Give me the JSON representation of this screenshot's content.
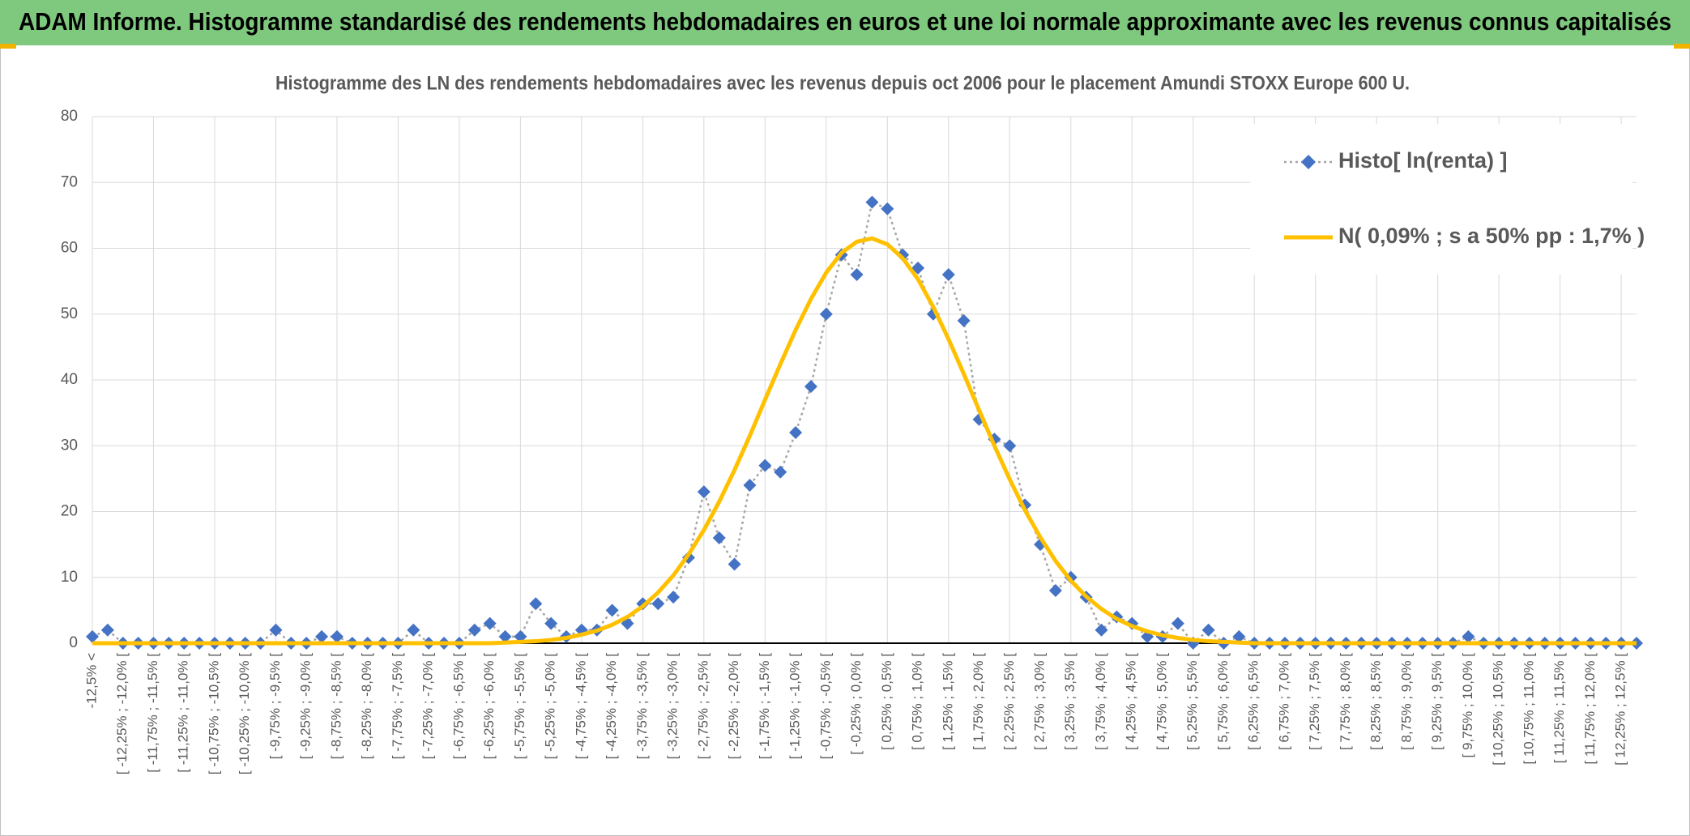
{
  "chart_data": {
    "type": "line",
    "title": "ADAM Informe. Histogramme standardisé des rendements hebdomadaires en euros et une loi normale approximante avec les revenus connus capitalisés",
    "subtitle": "Histogramme des LN des rendements hebdomadaires avec les revenus depuis oct 2006 pour le placement Amundi STOXX Europe 600 U.",
    "categories": [
      "-12,5% <",
      null,
      "[ -12,25% ; -12,0% [",
      null,
      "[ -11,75% ; -11,5% [",
      null,
      "[ -11,25% ; -11,0% [",
      null,
      "[ -10,75% ; -10,5% [",
      null,
      "[ -10,25% ; -10,0% [",
      null,
      "[ -9,75% ; -9,5% [",
      null,
      "[ -9,25% ; -9,0% [",
      null,
      "[ -8,75% ; -8,5% [",
      null,
      "[ -8,25% ; -8,0% [",
      null,
      "[ -7,75% ; -7,5% [",
      null,
      "[ -7,25% ; -7,0% [",
      null,
      "[ -6,75% ; -6,5% [",
      null,
      "[ -6,25% ; -6,0% [",
      null,
      "[ -5,75% ; -5,5% [",
      null,
      "[ -5,25% ; -5,0% [",
      null,
      "[ -4,75% ; -4,5% [",
      null,
      "[ -4,25% ; -4,0% [",
      null,
      "[ -3,75% ; -3,5% [",
      null,
      "[ -3,25% ; -3,0% [",
      null,
      "[ -2,75% ; -2,5% [",
      null,
      "[ -2,25% ; -2,0% [",
      null,
      "[ -1,75% ; -1,5% [",
      null,
      "[ -1,25% ; -1,0% [",
      null,
      "[ -0,75% ; -0,5% [",
      null,
      "[ -0,25% ; 0,0% [",
      null,
      "[ 0,25% ; 0,5% [",
      null,
      "[ 0,75% ; 1,0% [",
      null,
      "[ 1,25% ; 1,5% [",
      null,
      "[ 1,75% ; 2,0% [",
      null,
      "[ 2,25% ; 2,5% [",
      null,
      "[ 2,75% ; 3,0% [",
      null,
      "[ 3,25% ; 3,5% [",
      null,
      "[ 3,75% ; 4,0% [",
      null,
      "[ 4,25% ; 4,5% [",
      null,
      "[ 4,75% ; 5,0% [",
      null,
      "[ 5,25% ; 5,5% [",
      null,
      "[ 5,75% ; 6,0% [",
      null,
      "[ 6,25% ; 6,5% [",
      null,
      "[ 6,75% ; 7,0% [",
      null,
      "[ 7,25% ; 7,5% [",
      null,
      "[ 7,75% ; 8,0% [",
      null,
      "[ 8,25% ; 8,5% [",
      null,
      "[ 8,75% ; 9,0% [",
      null,
      "[ 9,25% ; 9,5% [",
      null,
      "[ 9,75% ; 10,0% [",
      null,
      "[ 10,25% ; 10,5% [",
      null,
      "[ 10,75% ; 11,0% [",
      null,
      "[ 11,25% ; 11,5% [",
      null,
      "[ 11,75% ; 12,0% [",
      null,
      "[ 12,25% ; 12,5% [",
      null
    ],
    "series": [
      {
        "name": "Histo[ ln(renta) ]",
        "color": "#4472c4",
        "line_color": "#a6a6a6",
        "marker": "diamond",
        "dashed": true,
        "values": [
          1,
          2,
          0,
          0,
          0,
          0,
          0,
          0,
          0,
          0,
          0,
          0,
          2,
          0,
          0,
          1,
          1,
          0,
          0,
          0,
          0,
          2,
          0,
          0,
          0,
          2,
          3,
          1,
          1,
          6,
          3,
          1,
          2,
          2,
          5,
          3,
          6,
          6,
          7,
          13,
          23,
          16,
          12,
          24,
          27,
          26,
          32,
          39,
          50,
          59,
          56,
          67,
          66,
          59,
          57,
          50,
          56,
          49,
          34,
          31,
          30,
          21,
          15,
          8,
          10,
          7,
          2,
          4,
          3,
          1,
          1,
          3,
          0,
          2,
          0,
          1,
          0,
          0,
          0,
          0,
          0,
          0,
          0,
          0,
          0,
          0,
          0,
          0,
          0,
          0,
          1,
          0,
          0,
          0,
          0,
          0,
          0,
          0,
          0,
          0,
          0,
          0
        ]
      },
      {
        "name": "N( 0,09% ; s a 50% pp : 1,7% )",
        "color": "#ffc000",
        "marker": "none",
        "dashed": false,
        "values": [
          0,
          0,
          0,
          0,
          0,
          0,
          0,
          0,
          0,
          0,
          0,
          0,
          0,
          0,
          0,
          0,
          0,
          0,
          0,
          0,
          0,
          0,
          0,
          0,
          0,
          0,
          0,
          0.1,
          0.2,
          0.3,
          0.5,
          0.8,
          1.3,
          1.9,
          2.8,
          4.0,
          5.6,
          7.7,
          10.3,
          13.5,
          17.2,
          21.5,
          26.3,
          31.5,
          37.0,
          42.4,
          47.6,
          52.3,
          56.3,
          59.3,
          61.0,
          61.5,
          60.6,
          58.5,
          55.3,
          51.1,
          46.2,
          40.9,
          35.4,
          30.0,
          24.9,
          20.2,
          16.1,
          12.5,
          9.5,
          7.1,
          5.2,
          3.7,
          2.6,
          1.8,
          1.2,
          0.8,
          0.5,
          0.3,
          0.2,
          0.1,
          0,
          0,
          0,
          0,
          0,
          0,
          0,
          0,
          0,
          0,
          0,
          0,
          0,
          0,
          0,
          0,
          0,
          0,
          0,
          0,
          0,
          0,
          0,
          0,
          0,
          0
        ]
      }
    ],
    "ylim": [
      0,
      80
    ],
    "yticks": [
      0,
      10,
      20,
      30,
      40,
      50,
      60,
      70,
      80
    ],
    "grid": true,
    "legend": "upper right"
  }
}
